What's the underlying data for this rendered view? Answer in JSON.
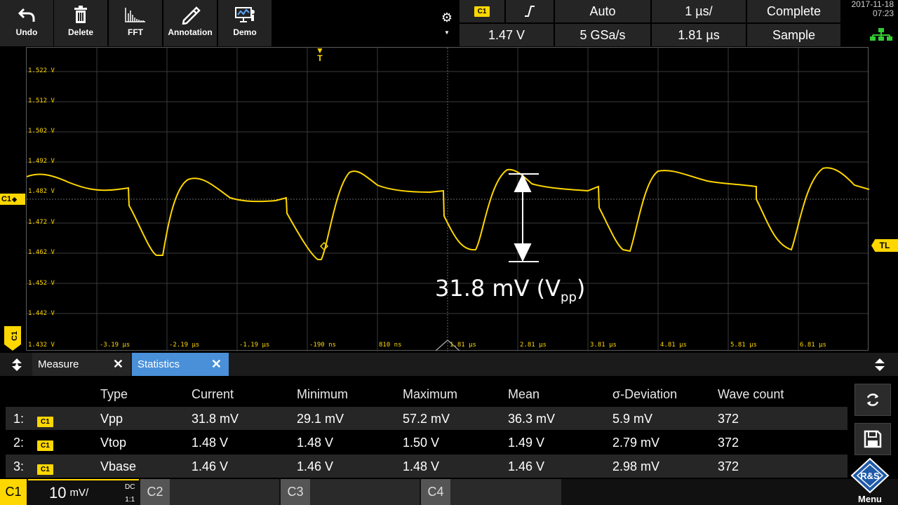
{
  "toolbar": {
    "undo": "Undo",
    "delete": "Delete",
    "fft": "FFT",
    "annotation": "Annotation",
    "demo": "Demo"
  },
  "status": {
    "trigger_channel": "C1",
    "trigger_mode": "Auto",
    "time_scale": "1 µs/",
    "acq_state": "Complete",
    "trigger_level": "1.47 V",
    "sample_rate": "5 GSa/s",
    "time_offset": "1.81 µs",
    "acq_mode": "Sample",
    "date": "2017-11-18",
    "time": "07:23"
  },
  "screen": {
    "y_labels": [
      "1.522 V",
      "1.512 V",
      "1.502 V",
      "1.492 V",
      "1.482 V",
      "1.472 V",
      "1.462 V",
      "1.452 V",
      "1.442 V",
      "1.432 V"
    ],
    "x_labels": [
      "-3.19 µs",
      "-2.19 µs",
      "-1.19 µs",
      "-190 ns",
      "810 ns",
      "1.81 µs",
      "2.81 µs",
      "3.81 µs",
      "4.81 µs",
      "5.81 µs",
      "6.81 µs"
    ],
    "channel_marker": "C1",
    "trigger_level_marker": "TL",
    "trigger_marker": "T",
    "measurement_value": "31.8 mV (V",
    "measurement_sub": "pp",
    "measurement_close": ")",
    "trace_color": "#ffd700"
  },
  "tabs": {
    "measure": "Measure",
    "statistics": "Statistics"
  },
  "stats": {
    "headers": [
      "Type",
      "Current",
      "Minimum",
      "Maximum",
      "Mean",
      "σ-Deviation",
      "Wave count"
    ],
    "rows": [
      {
        "index": "1:",
        "channel": "C1",
        "type": "Vpp",
        "current": "31.8 mV",
        "minimum": "29.1 mV",
        "maximum": "57.2 mV",
        "mean": "36.3 mV",
        "deviation": "5.9 mV",
        "count": "372"
      },
      {
        "index": "2:",
        "channel": "C1",
        "type": "Vtop",
        "current": "1.48 V",
        "minimum": "1.48 V",
        "maximum": "1.50 V",
        "mean": "1.49 V",
        "deviation": "2.79 mV",
        "count": "372"
      },
      {
        "index": "3:",
        "channel": "C1",
        "type": "Vbase",
        "current": "1.46 V",
        "minimum": "1.46 V",
        "maximum": "1.48 V",
        "mean": "1.46 V",
        "deviation": "2.98 mV",
        "count": "372"
      }
    ]
  },
  "channels": {
    "c1": "C1",
    "c1_scale": "10",
    "c1_unit": "mV/",
    "c1_coupling": "DC",
    "c1_probe": "1:1",
    "c2": "C2",
    "c3": "C3",
    "c4": "C4",
    "menu": "Menu",
    "logo_text": "R&S"
  }
}
